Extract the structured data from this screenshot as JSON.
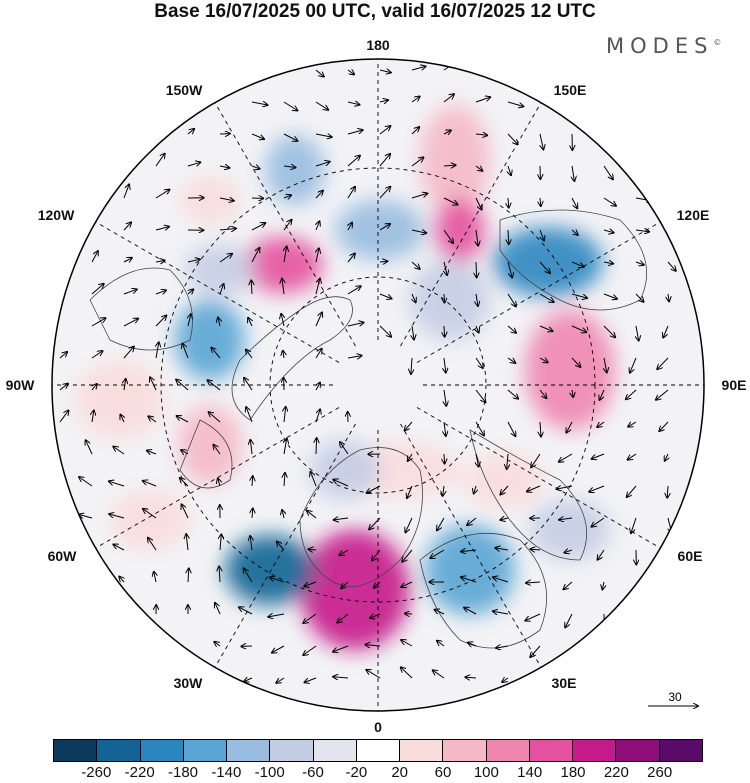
{
  "title": "Base 16/07/2025 00 UTC, valid 16/07/2025 12 UTC",
  "brand": {
    "name": "MODES",
    "mark": "©"
  },
  "map": {
    "projection": "north-polar-stereographic",
    "lon_labels": {
      "top": "180",
      "bottom": "0",
      "left": "90W",
      "right": "90E",
      "upper_left_1": "150W",
      "upper_left_2": "120W",
      "upper_right_1": "150E",
      "upper_right_2": "120E",
      "lower_left_1": "60W",
      "lower_left_2": "30W",
      "lower_right_1": "60E",
      "lower_right_2": "30E"
    },
    "graticule": "dashed",
    "vectors": "wind-arrows",
    "reference_vector": "30"
  },
  "colorbar": {
    "colors": [
      "#0b3a5c",
      "#136494",
      "#2b86c0",
      "#5aa5d4",
      "#98bde0",
      "#c3cde4",
      "#e4e4f0",
      "#ffffff",
      "#f9dcdc",
      "#f5b8c6",
      "#ef86b0",
      "#e4519f",
      "#c51b8a",
      "#8e0e79",
      "#5a0a68"
    ],
    "ticks": [
      "-260",
      "-220",
      "-180",
      "-140",
      "-100",
      "-60",
      "-20",
      "20",
      "60",
      "100",
      "140",
      "180",
      "220",
      "260"
    ]
  }
}
